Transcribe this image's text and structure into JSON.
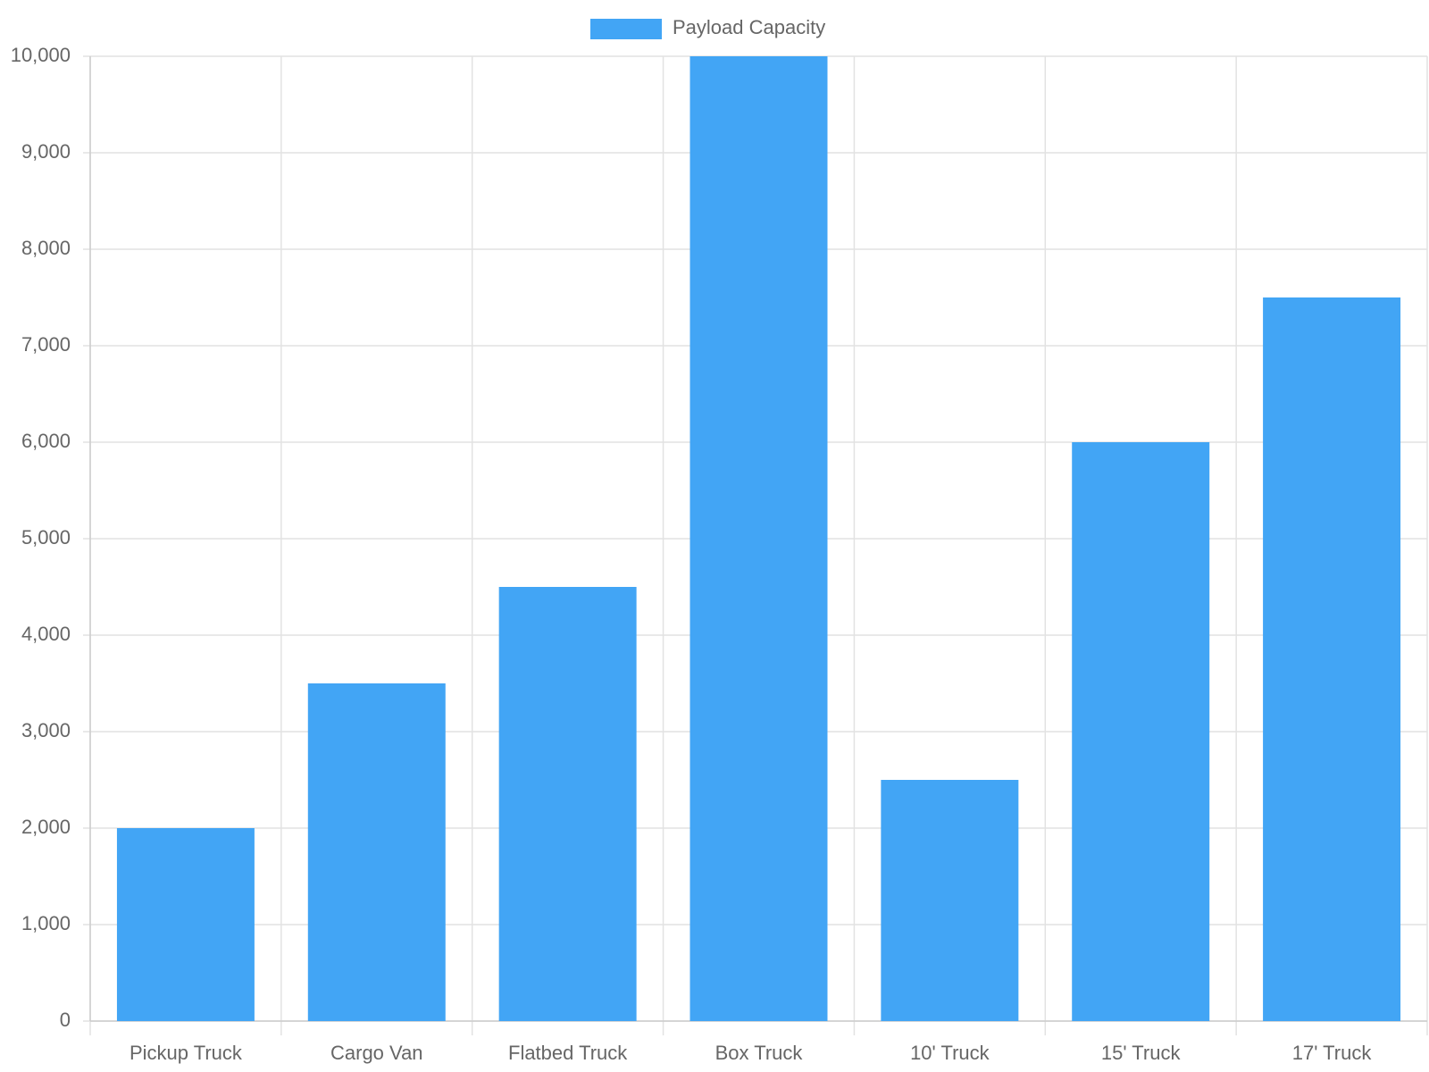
{
  "chart_data": {
    "type": "bar",
    "categories": [
      "Pickup Truck",
      "Cargo Van",
      "Flatbed Truck",
      "Box Truck",
      "10' Truck",
      "15' Truck",
      "17' Truck"
    ],
    "series": [
      {
        "name": "Payload Capacity",
        "color": "#42a5f5",
        "values": [
          2000,
          3500,
          4500,
          10000,
          2500,
          6000,
          7500
        ]
      }
    ],
    "ylim": [
      0,
      10000
    ],
    "yticks": [
      0,
      {
        "value": 1000,
        "label": "1,000"
      },
      {
        "value": 2000,
        "label": "2,000"
      },
      {
        "value": 3000,
        "label": "3,000"
      },
      {
        "value": 4000,
        "label": "4,000"
      },
      {
        "value": 5000,
        "label": "5,000"
      },
      {
        "value": 6000,
        "label": "6,000"
      },
      {
        "value": 7000,
        "label": "7,000"
      },
      {
        "value": 8000,
        "label": "8,000"
      },
      {
        "value": 9000,
        "label": "9,000"
      },
      {
        "value": 10000,
        "label": "10,000"
      }
    ],
    "grid": true,
    "legend": "top"
  }
}
